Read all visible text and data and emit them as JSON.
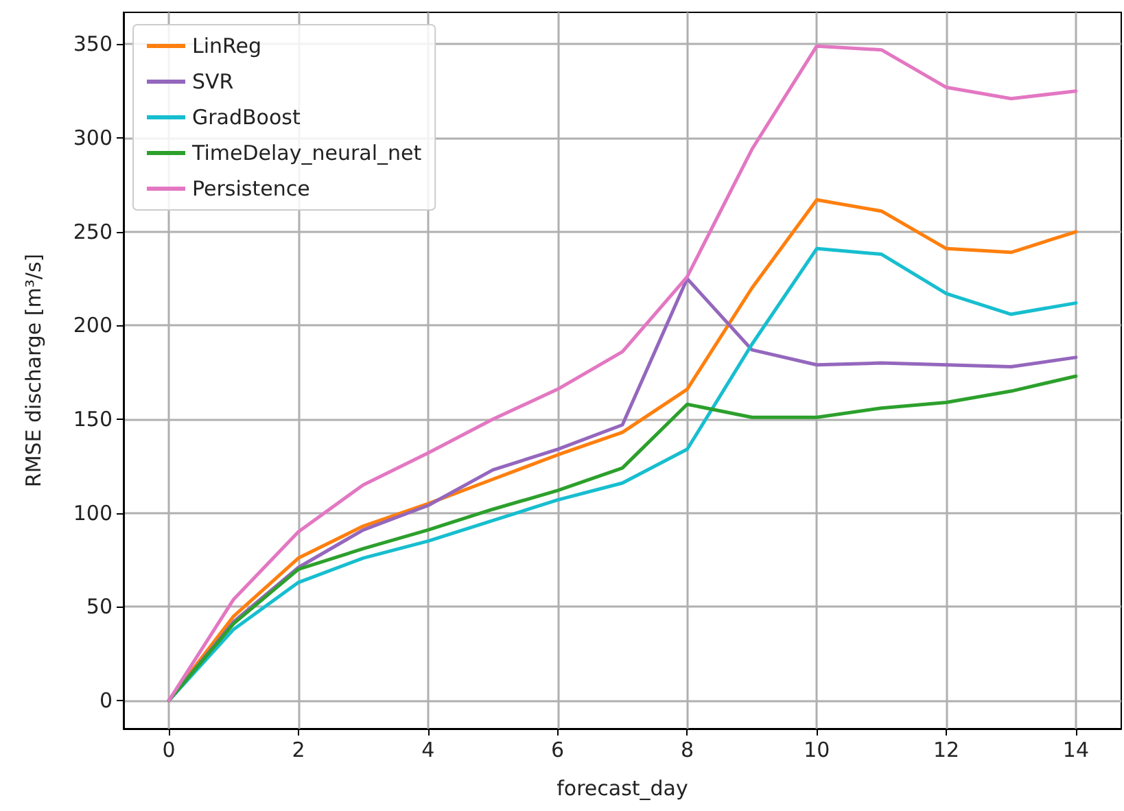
{
  "chart_data": {
    "type": "line",
    "xlabel": "forecast_day",
    "ylabel": "RMSE discharge [m³/s]",
    "x": [
      0,
      1,
      2,
      3,
      4,
      5,
      6,
      7,
      8,
      9,
      10,
      11,
      12,
      13,
      14
    ],
    "xlim": [
      -0.7,
      14.7
    ],
    "xticks": [
      0,
      2,
      4,
      6,
      8,
      10,
      12,
      14
    ],
    "ylim": [
      -15,
      367
    ],
    "yticks": [
      0,
      50,
      100,
      150,
      200,
      250,
      300,
      350
    ],
    "grid": true,
    "legend": "top left",
    "marker": "none",
    "line_style": "solid",
    "series": [
      {
        "name": "LinReg",
        "color": "#ff7f0e",
        "values": [
          0,
          45,
          76,
          93,
          105,
          118,
          131,
          143,
          166,
          220,
          267,
          261,
          241,
          239,
          250
        ]
      },
      {
        "name": "SVR",
        "color": "#9467bd",
        "values": [
          0,
          42,
          71,
          91,
          104,
          123,
          134,
          147,
          225,
          187,
          179,
          180,
          179,
          178,
          183
        ]
      },
      {
        "name": "GradBoost",
        "color": "#17becf",
        "values": [
          0,
          38,
          63,
          76,
          85,
          96,
          107,
          116,
          134,
          190,
          241,
          238,
          217,
          206,
          212
        ]
      },
      {
        "name": "TimeDelay_neural_net",
        "color": "#2ca02c",
        "values": [
          0,
          41,
          70,
          81,
          91,
          102,
          112,
          124,
          158,
          151,
          151,
          156,
          159,
          165,
          173
        ]
      },
      {
        "name": "Persistence",
        "color": "#e377c2",
        "values": [
          0,
          54,
          90,
          115,
          132,
          150,
          166,
          186,
          226,
          294,
          349,
          347,
          327,
          321,
          325
        ]
      }
    ]
  }
}
